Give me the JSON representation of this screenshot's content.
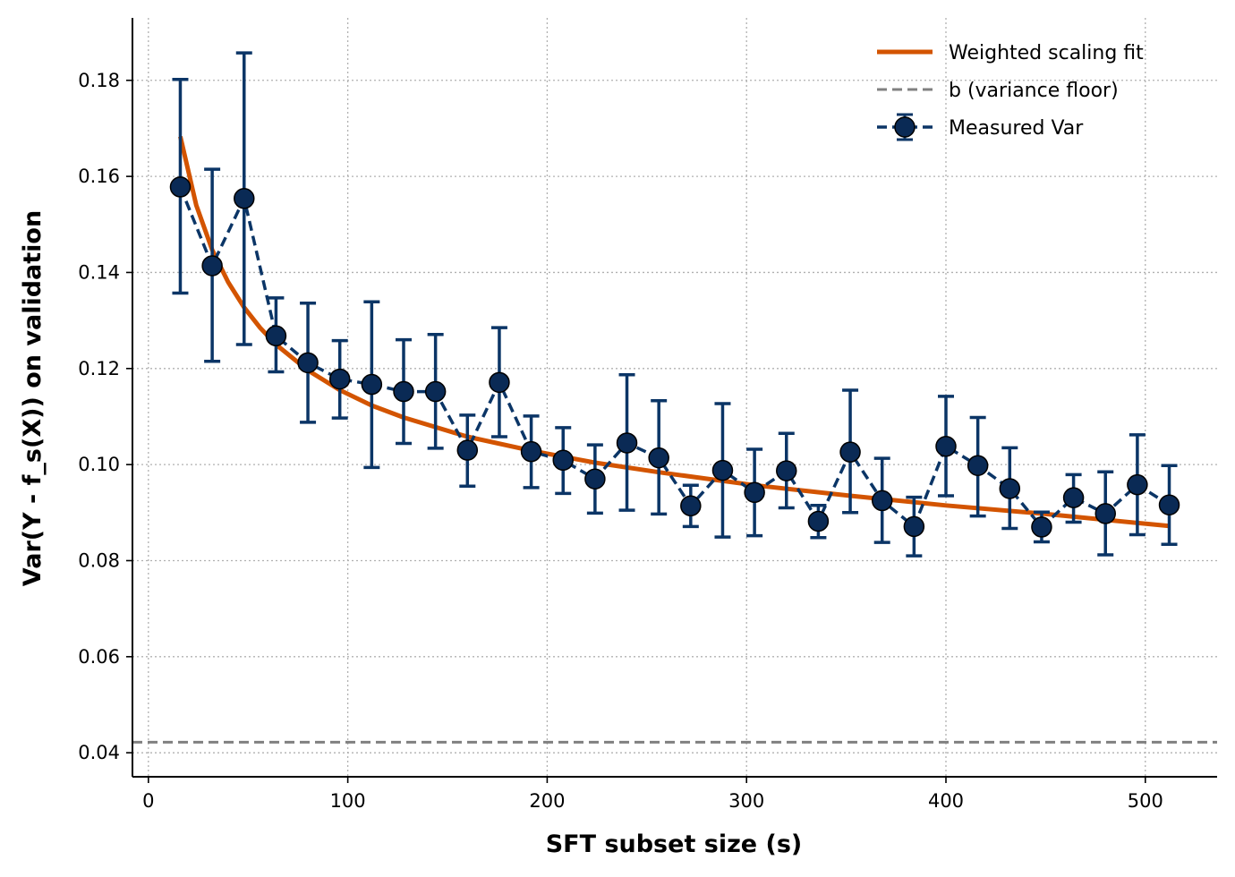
{
  "chart_data": {
    "type": "line",
    "xlabel": "SFT subset size (s)",
    "ylabel": "Var(Y - f_s(X)) on validation",
    "xlim": [
      -8,
      536
    ],
    "ylim": [
      0.035,
      0.193
    ],
    "xticks": [
      0,
      100,
      200,
      300,
      400,
      500
    ],
    "yticks": [
      0.04,
      0.06,
      0.08,
      0.1,
      0.12,
      0.14,
      0.16,
      0.18
    ],
    "ytick_labels": [
      "0.04",
      "0.06",
      "0.08",
      "0.10",
      "0.12",
      "0.14",
      "0.16",
      "0.18"
    ],
    "grid": true,
    "legend_position": "top-right",
    "legend": [
      {
        "label": "Weighted scaling fit",
        "style": "solid",
        "color": "#d35400"
      },
      {
        "label": "b (variance floor)",
        "style": "dashed",
        "color": "#808080"
      },
      {
        "label": "Measured Var",
        "style": "dashed-marker",
        "color": "#0b3566"
      }
    ],
    "series": [
      {
        "name": "Measured Var",
        "color": "#0b3566",
        "marker_fill": "#0a2a55",
        "x": [
          16,
          32,
          48,
          64,
          80,
          96,
          112,
          128,
          144,
          160,
          176,
          192,
          208,
          224,
          240,
          256,
          272,
          288,
          304,
          320,
          336,
          352,
          368,
          384,
          400,
          416,
          432,
          448,
          464,
          480,
          496,
          512
        ],
        "y": [
          0.1578,
          0.1414,
          0.1554,
          0.1268,
          0.1212,
          0.1178,
          0.1167,
          0.1152,
          0.1152,
          0.103,
          0.1171,
          0.1027,
          0.1009,
          0.097,
          0.1045,
          0.1014,
          0.0914,
          0.0988,
          0.0942,
          0.0987,
          0.0882,
          0.1026,
          0.0925,
          0.0871,
          0.1038,
          0.0998,
          0.095,
          0.087,
          0.0931,
          0.0898,
          0.0958,
          0.0916
        ],
        "err_low": [
          0.1357,
          0.1215,
          0.125,
          0.1193,
          0.1088,
          0.1097,
          0.0994,
          0.1044,
          0.1034,
          0.0955,
          0.1058,
          0.0952,
          0.094,
          0.0899,
          0.0905,
          0.0897,
          0.0871,
          0.0849,
          0.0852,
          0.091,
          0.0848,
          0.09,
          0.0838,
          0.081,
          0.0935,
          0.0893,
          0.0867,
          0.0839,
          0.088,
          0.0812,
          0.0854,
          0.0834
        ],
        "err_high": [
          0.1802,
          0.1615,
          0.1857,
          0.1347,
          0.1336,
          0.1258,
          0.1339,
          0.126,
          0.1271,
          0.1103,
          0.1285,
          0.1101,
          0.1077,
          0.1041,
          0.1187,
          0.1133,
          0.0957,
          0.1127,
          0.1032,
          0.1065,
          0.0915,
          0.1155,
          0.1013,
          0.0932,
          0.1142,
          0.1098,
          0.1035,
          0.0901,
          0.0979,
          0.0985,
          0.1062,
          0.0998
        ]
      }
    ],
    "fit": {
      "name": "Weighted scaling fit",
      "color": "#d35400",
      "x": [
        16,
        24,
        32,
        40,
        48,
        56,
        64,
        80,
        96,
        112,
        128,
        160,
        192,
        224,
        256,
        304,
        352,
        400,
        448,
        512
      ],
      "y": [
        0.1683,
        0.154,
        0.1447,
        0.138,
        0.1327,
        0.1285,
        0.125,
        0.1196,
        0.1155,
        0.1123,
        0.1098,
        0.1058,
        0.1029,
        0.1004,
        0.0984,
        0.0957,
        0.0935,
        0.0915,
        0.0898,
        0.0872
      ]
    },
    "floor": {
      "name": "b (variance floor)",
      "value": 0.0422,
      "color": "#808080"
    }
  }
}
